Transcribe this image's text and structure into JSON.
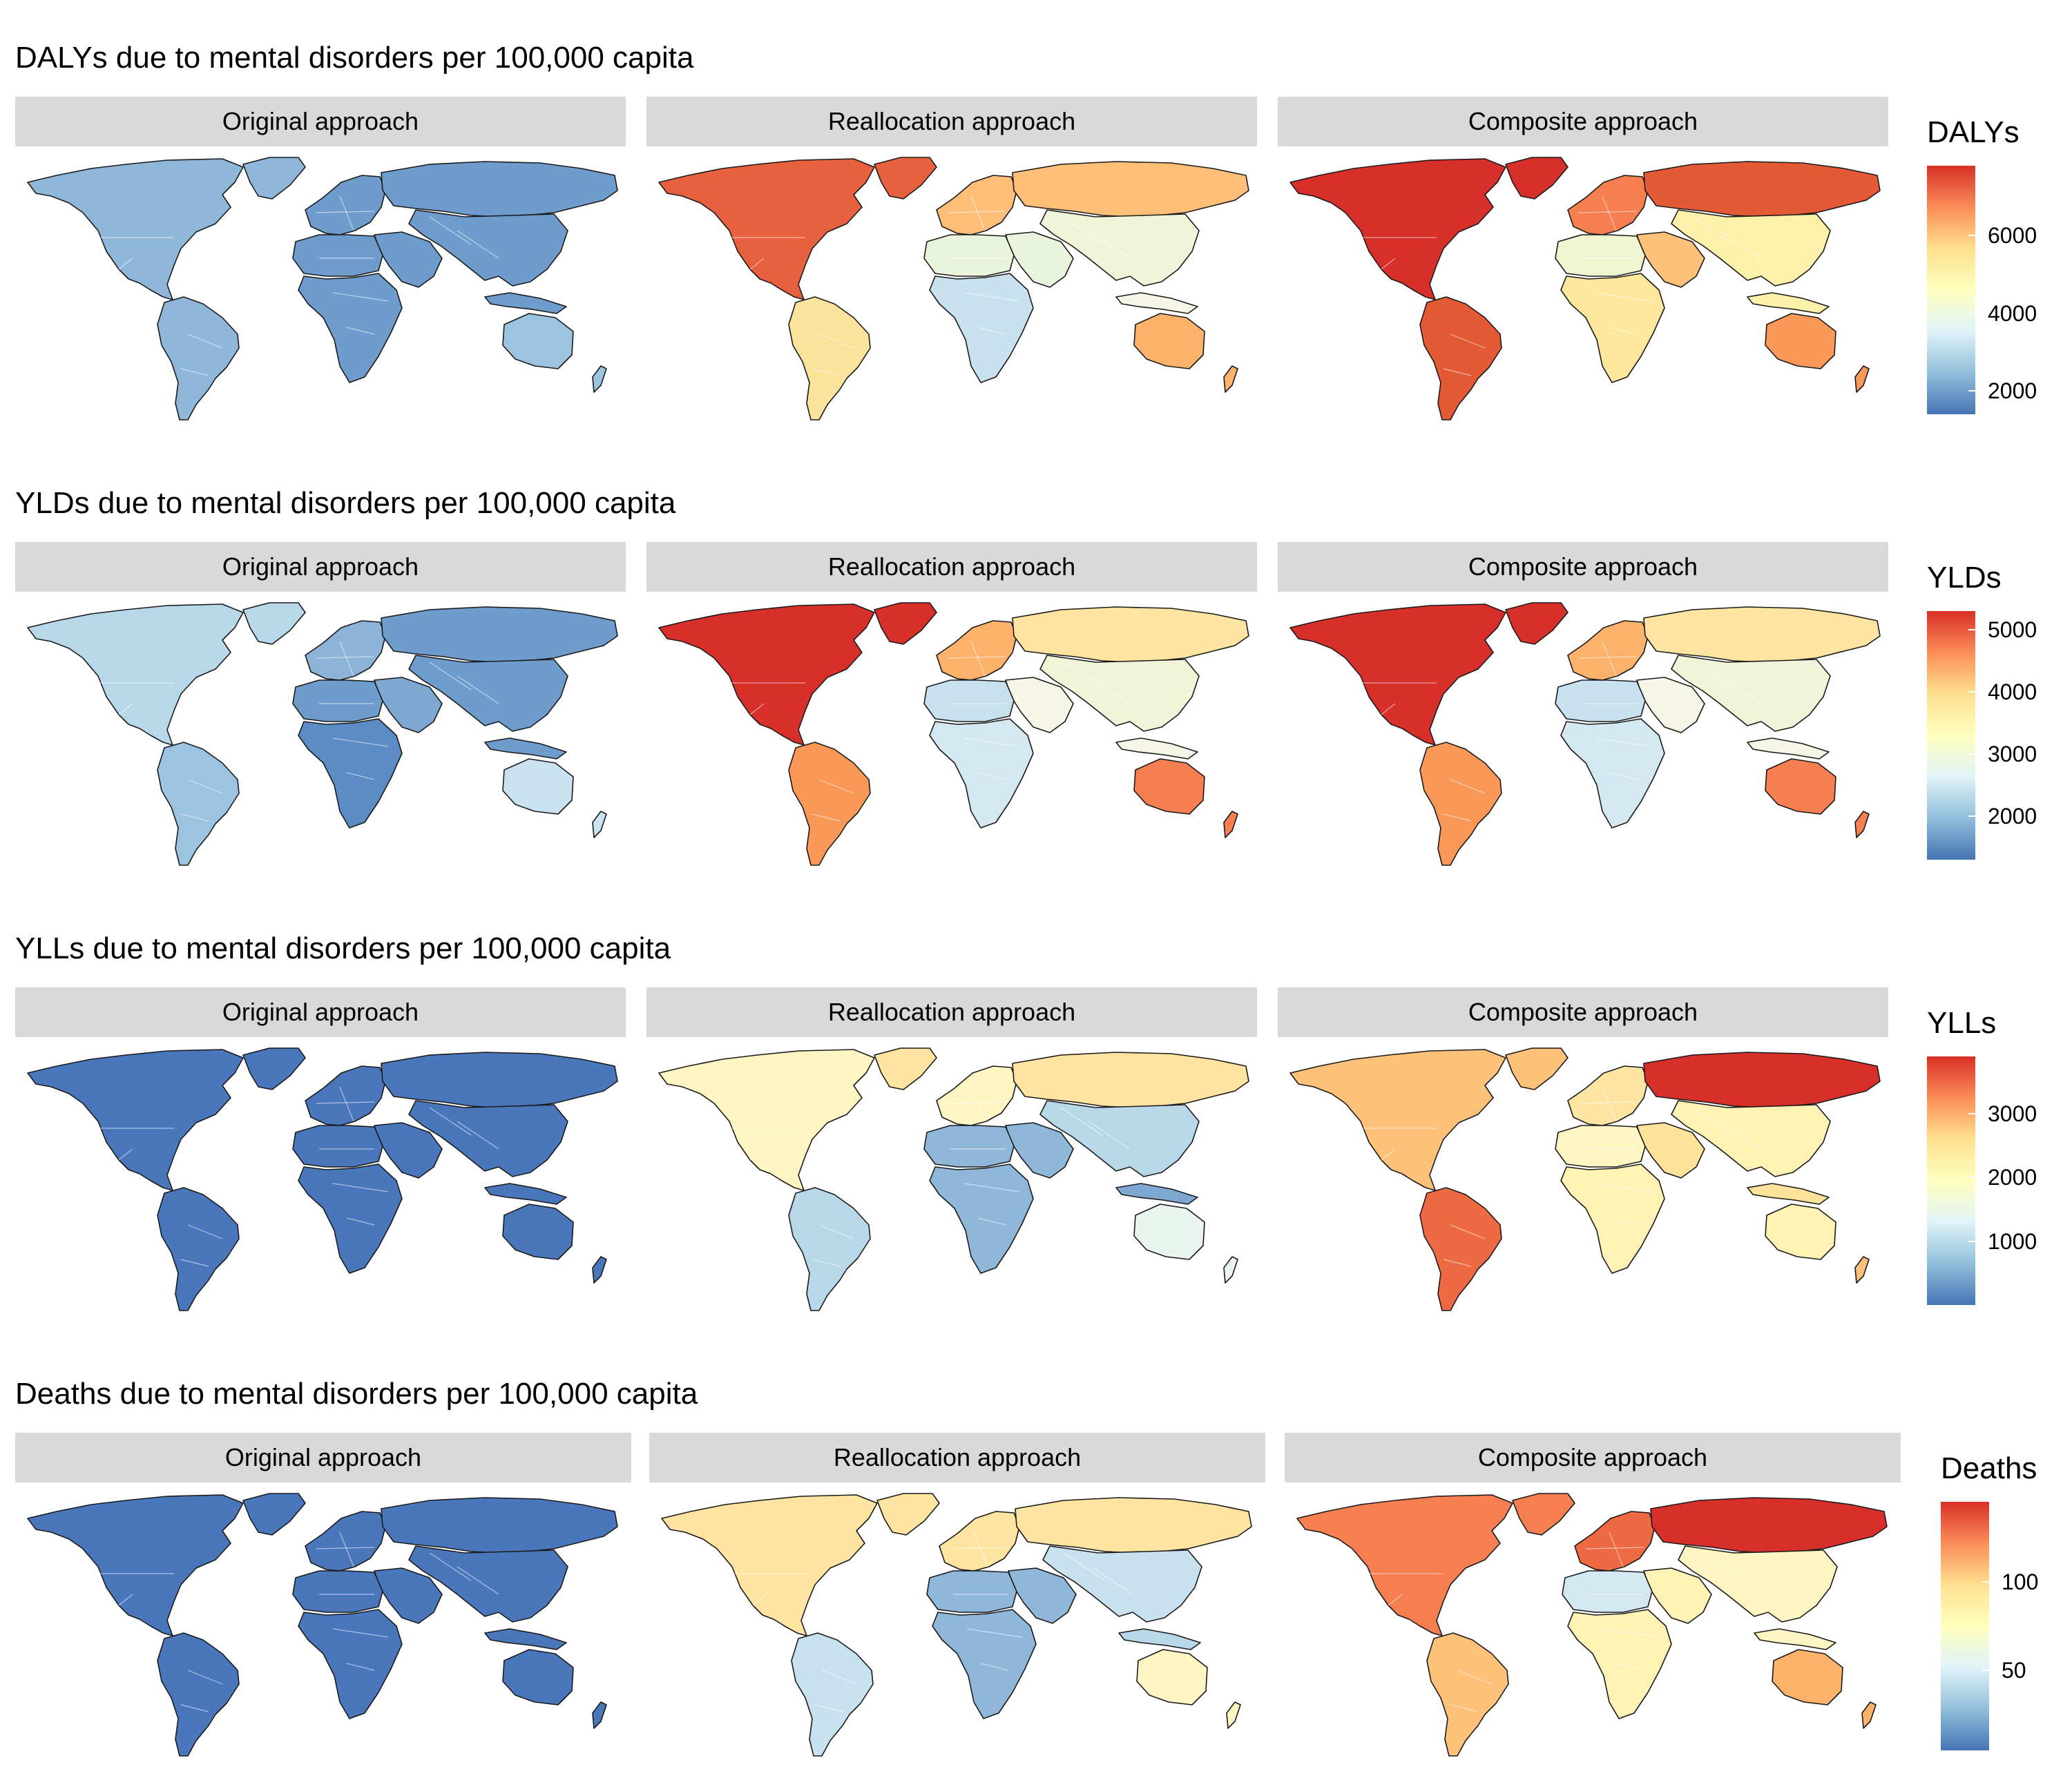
{
  "sections": [
    {
      "title": "DALYs due to mental disorders per 100,000 capita",
      "panels": [
        {
          "label": "Original approach",
          "regions": {
            "northAmerica": "#8fb7da",
            "greenland": "#8fb7da",
            "southAmerica": "#8fb7da",
            "europe": "#6e9ccd",
            "russia": "#6e9ccd",
            "asia": "#6e9ccd",
            "middleEast": "#6e9ccd",
            "northAfrica": "#6e9ccd",
            "subSaharanAfrica": "#6e9ccd",
            "australia": "#9cc3e0",
            "newZealand": "#9cc3e0",
            "indonesia": "#6e9ccd"
          }
        },
        {
          "label": "Reallocation approach",
          "regions": {
            "northAmerica": "#e8613e",
            "greenland": "#e8613e",
            "southAmerica": "#fae39a",
            "europe": "#fdbf78",
            "russia": "#fdbf78",
            "asia": "#f0f4d8",
            "middleEast": "#eaf4dc",
            "northAfrica": "#eaf4dc",
            "subSaharanAfrica": "#c8e1ef",
            "australia": "#fdb26b",
            "newZealand": "#fdb26b",
            "indonesia": "#f6f6e6"
          }
        },
        {
          "label": "Composite approach",
          "regions": {
            "northAmerica": "#d7302b",
            "greenland": "#d7302b",
            "southAmerica": "#e35a35",
            "europe": "#f57f50",
            "russia": "#e35a35",
            "asia": "#fdf0a8",
            "middleEast": "#fdc17a",
            "northAfrica": "#eff5d0",
            "subSaharanAfrica": "#fde79c",
            "australia": "#fa9858",
            "newZealand": "#fa9858",
            "indonesia": "#fdf0a8"
          }
        }
      ],
      "legend": {
        "title": "DALYs",
        "ticks": [
          "6000",
          "4000",
          "2000"
        ],
        "tick_values": [
          6000,
          4000,
          2000
        ],
        "min": 1400,
        "max": 7800
      }
    },
    {
      "title": "YLDs due to mental disorders per 100,000 capita",
      "panels": [
        {
          "label": "Original approach",
          "regions": {
            "northAmerica": "#b8d8ea",
            "greenland": "#b8d8ea",
            "southAmerica": "#9cc3e0",
            "europe": "#8db4d8",
            "russia": "#6e9ccd",
            "asia": "#6e9ccd",
            "middleEast": "#7ea8d2",
            "northAfrica": "#6e9ccd",
            "subSaharanAfrica": "#5b8cc4",
            "australia": "#c9e2ef",
            "newZealand": "#c9e2ef",
            "indonesia": "#6e9ccd"
          }
        },
        {
          "label": "Reallocation approach",
          "regions": {
            "northAmerica": "#d7302b",
            "greenland": "#d7302b",
            "southAmerica": "#fa9858",
            "europe": "#fdb26b",
            "russia": "#fde4a0",
            "asia": "#f0f4d8",
            "middleEast": "#f6f6e6",
            "northAfrica": "#c8e1ef",
            "subSaharanAfrica": "#d3e8f1",
            "australia": "#f57f50",
            "newZealand": "#f57f50",
            "indonesia": "#f6f6e6"
          }
        },
        {
          "label": "Composite approach",
          "regions": {
            "northAmerica": "#d7302b",
            "greenland": "#d7302b",
            "southAmerica": "#fa9858",
            "europe": "#fdb26b",
            "russia": "#fde4a0",
            "asia": "#f0f4d8",
            "middleEast": "#f6f6e6",
            "northAfrica": "#c8e1ef",
            "subSaharanAfrica": "#d3e8f1",
            "australia": "#f57f50",
            "newZealand": "#f57f50",
            "indonesia": "#f6f6e6"
          }
        }
      ],
      "legend": {
        "title": "YLDs",
        "ticks": [
          "5000",
          "4000",
          "3000",
          "2000"
        ],
        "tick_values": [
          5000,
          4000,
          3000,
          2000
        ],
        "min": 1300,
        "max": 5300
      }
    },
    {
      "title": "YLLs due to mental disorders per 100,000 capita",
      "panels": [
        {
          "label": "Original approach",
          "regions": {
            "northAmerica": "#4a77bc",
            "greenland": "#4a77bc",
            "southAmerica": "#4a77bc",
            "europe": "#4a77bc",
            "russia": "#4a77bc",
            "asia": "#4a77bc",
            "middleEast": "#4a77bc",
            "northAfrica": "#4a77bc",
            "subSaharanAfrica": "#4a77bc",
            "australia": "#4a77bc",
            "newZealand": "#4a77bc",
            "indonesia": "#4a77bc"
          }
        },
        {
          "label": "Reallocation approach",
          "regions": {
            "northAmerica": "#fff5c2",
            "greenland": "#fde4a0",
            "southAmerica": "#b8d8ea",
            "europe": "#fff5c2",
            "russia": "#fde4a0",
            "asia": "#b8d8ea",
            "middleEast": "#8fb7da",
            "northAfrica": "#8fb7da",
            "subSaharanAfrica": "#8fb7da",
            "australia": "#eaf4ee",
            "newZealand": "#eaf4ee",
            "indonesia": "#7ea8d2"
          }
        },
        {
          "label": "Composite approach",
          "regions": {
            "northAmerica": "#fdc17a",
            "greenland": "#fdc17a",
            "southAmerica": "#ee6a43",
            "europe": "#fde4a0",
            "russia": "#d7302b",
            "asia": "#fff2b4",
            "middleEast": "#fde39a",
            "northAfrica": "#fff5c2",
            "subSaharanAfrica": "#fff2b4",
            "australia": "#fff2b4",
            "newZealand": "#fdc17a",
            "indonesia": "#fde39a"
          }
        }
      ],
      "legend": {
        "title": "YLLs",
        "ticks": [
          "3000",
          "2000",
          "1000"
        ],
        "tick_values": [
          3000,
          2000,
          1000
        ],
        "min": 0,
        "max": 3900
      }
    },
    {
      "title": "Deaths due to mental disorders per 100,000 capita",
      "panels": [
        {
          "label": "Original approach",
          "regions": {
            "northAmerica": "#4a77bc",
            "greenland": "#4a77bc",
            "southAmerica": "#4a77bc",
            "europe": "#4a77bc",
            "russia": "#4a77bc",
            "asia": "#4a77bc",
            "middleEast": "#4a77bc",
            "northAfrica": "#4a77bc",
            "subSaharanAfrica": "#4a77bc",
            "australia": "#4a77bc",
            "newZealand": "#4a77bc",
            "indonesia": "#4a77bc"
          }
        },
        {
          "label": "Reallocation approach",
          "regions": {
            "northAmerica": "#fde4a0",
            "greenland": "#fde4a0",
            "southAmerica": "#c8e1ef",
            "europe": "#fde4a0",
            "russia": "#fde4a0",
            "asia": "#c8e1ef",
            "middleEast": "#8fb7da",
            "northAfrica": "#8fb7da",
            "subSaharanAfrica": "#8fb7da",
            "australia": "#fff5c2",
            "newZealand": "#fff5c2",
            "indonesia": "#b8d8ea"
          }
        },
        {
          "label": "Composite approach",
          "regions": {
            "northAmerica": "#f57f50",
            "greenland": "#f57f50",
            "southAmerica": "#fdc17a",
            "europe": "#ee6a43",
            "russia": "#d7302b",
            "asia": "#fff5c2",
            "middleEast": "#fff2b4",
            "northAfrica": "#d3e8f1",
            "subSaharanAfrica": "#fff2b4",
            "australia": "#fdb26b",
            "newZealand": "#fdb26b",
            "indonesia": "#fff5c2"
          }
        }
      ],
      "legend": {
        "title": "Deaths",
        "ticks": [
          "100",
          "50"
        ],
        "tick_values": [
          100,
          50
        ],
        "min": 5,
        "max": 145
      }
    }
  ]
}
